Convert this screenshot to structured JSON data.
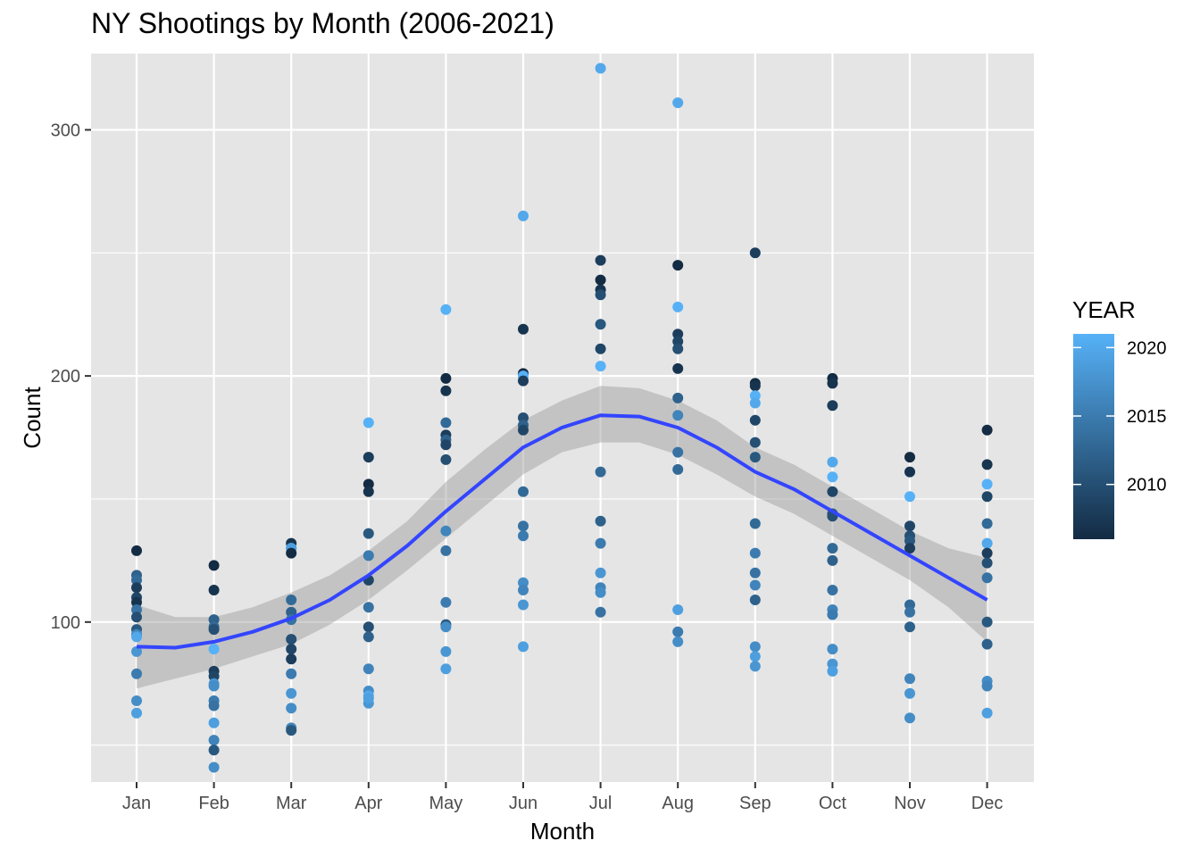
{
  "chart_data": {
    "type": "scatter",
    "title": "NY Shootings by Month (2006-2021)",
    "xlabel": "Month",
    "ylabel": "Count",
    "categories": [
      "Jan",
      "Feb",
      "Mar",
      "Apr",
      "May",
      "Jun",
      "Jul",
      "Aug",
      "Sep",
      "Oct",
      "Nov",
      "Dec"
    ],
    "ylim": [
      35,
      331
    ],
    "y_ticks": [
      100,
      200,
      300
    ],
    "grid": true,
    "panel_background": "#e5e5e5",
    "legend": {
      "title": "YEAR",
      "placement": "right",
      "ticks": [
        2010,
        2015,
        2020
      ],
      "range": [
        2006,
        2021
      ],
      "color_low": "#132b43",
      "color_high": "#56b1f7"
    },
    "smooth": {
      "color": "#3345ff",
      "band_color": "#999999",
      "points": [
        {
          "x": 1.0,
          "y": 90,
          "lo": 73,
          "hi": 107
        },
        {
          "x": 1.5,
          "y": 89.6,
          "lo": 77,
          "hi": 102
        },
        {
          "x": 2.0,
          "y": 92,
          "lo": 81,
          "hi": 102
        },
        {
          "x": 2.5,
          "y": 96,
          "lo": 86,
          "hi": 106
        },
        {
          "x": 3.0,
          "y": 101.5,
          "lo": 91,
          "hi": 112
        },
        {
          "x": 3.5,
          "y": 109,
          "lo": 99,
          "hi": 119
        },
        {
          "x": 4.0,
          "y": 119,
          "lo": 109,
          "hi": 129
        },
        {
          "x": 4.5,
          "y": 131,
          "lo": 121,
          "hi": 141
        },
        {
          "x": 5.0,
          "y": 145,
          "lo": 134,
          "hi": 157
        },
        {
          "x": 5.5,
          "y": 158,
          "lo": 147,
          "hi": 170
        },
        {
          "x": 6.0,
          "y": 171,
          "lo": 160,
          "hi": 182
        },
        {
          "x": 6.5,
          "y": 179,
          "lo": 169,
          "hi": 190
        },
        {
          "x": 7.0,
          "y": 184,
          "lo": 173,
          "hi": 196
        },
        {
          "x": 7.5,
          "y": 183.5,
          "lo": 173,
          "hi": 195
        },
        {
          "x": 8.0,
          "y": 179,
          "lo": 168,
          "hi": 190
        },
        {
          "x": 8.5,
          "y": 171,
          "lo": 160,
          "hi": 182
        },
        {
          "x": 9.0,
          "y": 161,
          "lo": 151,
          "hi": 171
        },
        {
          "x": 9.5,
          "y": 154,
          "lo": 144,
          "hi": 164
        },
        {
          "x": 10.0,
          "y": 145,
          "lo": 135,
          "hi": 155
        },
        {
          "x": 10.5,
          "y": 136,
          "lo": 126,
          "hi": 146
        },
        {
          "x": 11.0,
          "y": 127,
          "lo": 117,
          "hi": 137
        },
        {
          "x": 11.5,
          "y": 118,
          "lo": 106,
          "hi": 130
        },
        {
          "x": 12.0,
          "y": 109,
          "lo": 92,
          "hi": 126
        }
      ]
    },
    "series": [
      {
        "month": "Jan",
        "points": [
          {
            "y": 129,
            "year": 2006
          },
          {
            "y": 119,
            "year": 2012
          },
          {
            "y": 117,
            "year": 2013
          },
          {
            "y": 114,
            "year": 2008
          },
          {
            "y": 110,
            "year": 2009
          },
          {
            "y": 108,
            "year": 2007
          },
          {
            "y": 105,
            "year": 2014
          },
          {
            "y": 102,
            "year": 2010
          },
          {
            "y": 97,
            "year": 2011
          },
          {
            "y": 95,
            "year": 2016
          },
          {
            "y": 94,
            "year": 2020
          },
          {
            "y": 88,
            "year": 2018
          },
          {
            "y": 79,
            "year": 2015
          },
          {
            "y": 68,
            "year": 2017
          },
          {
            "y": 63,
            "year": 2019
          }
        ]
      },
      {
        "month": "Feb",
        "points": [
          {
            "y": 123,
            "year": 2006
          },
          {
            "y": 113,
            "year": 2007
          },
          {
            "y": 101,
            "year": 2012
          },
          {
            "y": 98,
            "year": 2013
          },
          {
            "y": 97,
            "year": 2010
          },
          {
            "y": 89,
            "year": 2021
          },
          {
            "y": 80,
            "year": 2008
          },
          {
            "y": 78,
            "year": 2009
          },
          {
            "y": 75,
            "year": 2018
          },
          {
            "y": 74,
            "year": 2017
          },
          {
            "y": 68,
            "year": 2015
          },
          {
            "y": 66,
            "year": 2014
          },
          {
            "y": 59,
            "year": 2019
          },
          {
            "y": 52,
            "year": 2016
          },
          {
            "y": 48,
            "year": 2011
          },
          {
            "y": 41,
            "year": 2017
          }
        ]
      },
      {
        "month": "Mar",
        "points": [
          {
            "y": 132,
            "year": 2007
          },
          {
            "y": 130,
            "year": 2021
          },
          {
            "y": 130,
            "year": 2019
          },
          {
            "y": 128,
            "year": 2006
          },
          {
            "y": 109,
            "year": 2013
          },
          {
            "y": 104,
            "year": 2012
          },
          {
            "y": 101,
            "year": 2014
          },
          {
            "y": 93,
            "year": 2010
          },
          {
            "y": 89,
            "year": 2009
          },
          {
            "y": 85,
            "year": 2008
          },
          {
            "y": 79,
            "year": 2015
          },
          {
            "y": 71,
            "year": 2018
          },
          {
            "y": 65,
            "year": 2017
          },
          {
            "y": 57,
            "year": 2016
          },
          {
            "y": 56,
            "year": 2011
          }
        ]
      },
      {
        "month": "Apr",
        "points": [
          {
            "y": 181,
            "year": 2021
          },
          {
            "y": 167,
            "year": 2008
          },
          {
            "y": 156,
            "year": 2006
          },
          {
            "y": 153,
            "year": 2007
          },
          {
            "y": 136,
            "year": 2011
          },
          {
            "y": 127,
            "year": 2015
          },
          {
            "y": 117,
            "year": 2009
          },
          {
            "y": 106,
            "year": 2014
          },
          {
            "y": 98,
            "year": 2010
          },
          {
            "y": 94,
            "year": 2012
          },
          {
            "y": 81,
            "year": 2016
          },
          {
            "y": 72,
            "year": 2017
          },
          {
            "y": 70,
            "year": 2020
          },
          {
            "y": 67,
            "year": 2018
          },
          {
            "y": 69,
            "year": 2019
          }
        ]
      },
      {
        "month": "May",
        "points": [
          {
            "y": 227,
            "year": 2021
          },
          {
            "y": 199,
            "year": 2006
          },
          {
            "y": 194,
            "year": 2007
          },
          {
            "y": 181,
            "year": 2013
          },
          {
            "y": 176,
            "year": 2008
          },
          {
            "y": 174,
            "year": 2012
          },
          {
            "y": 172,
            "year": 2009
          },
          {
            "y": 166,
            "year": 2010
          },
          {
            "y": 137,
            "year": 2016
          },
          {
            "y": 129,
            "year": 2014
          },
          {
            "y": 108,
            "year": 2015
          },
          {
            "y": 99,
            "year": 2011
          },
          {
            "y": 98,
            "year": 2017
          },
          {
            "y": 88,
            "year": 2018
          },
          {
            "y": 81,
            "year": 2019
          }
        ]
      },
      {
        "month": "Jun",
        "points": [
          {
            "y": 265,
            "year": 2020
          },
          {
            "y": 219,
            "year": 2007
          },
          {
            "y": 201,
            "year": 2006
          },
          {
            "y": 200,
            "year": 2021
          },
          {
            "y": 198,
            "year": 2008
          },
          {
            "y": 183,
            "year": 2010
          },
          {
            "y": 180,
            "year": 2012
          },
          {
            "y": 178,
            "year": 2009
          },
          {
            "y": 153,
            "year": 2013
          },
          {
            "y": 139,
            "year": 2014
          },
          {
            "y": 135,
            "year": 2015
          },
          {
            "y": 116,
            "year": 2017
          },
          {
            "y": 113,
            "year": 2016
          },
          {
            "y": 107,
            "year": 2018
          },
          {
            "y": 90,
            "year": 2019
          }
        ]
      },
      {
        "month": "Jul",
        "points": [
          {
            "y": 325,
            "year": 2020
          },
          {
            "y": 247,
            "year": 2008
          },
          {
            "y": 239,
            "year": 2006
          },
          {
            "y": 235,
            "year": 2007
          },
          {
            "y": 233,
            "year": 2010
          },
          {
            "y": 221,
            "year": 2011
          },
          {
            "y": 211,
            "year": 2009
          },
          {
            "y": 204,
            "year": 2021
          },
          {
            "y": 161,
            "year": 2013
          },
          {
            "y": 141,
            "year": 2012
          },
          {
            "y": 132,
            "year": 2015
          },
          {
            "y": 120,
            "year": 2018
          },
          {
            "y": 114,
            "year": 2016
          },
          {
            "y": 112,
            "year": 2017
          },
          {
            "y": 104,
            "year": 2014
          }
        ]
      },
      {
        "month": "Aug",
        "points": [
          {
            "y": 311,
            "year": 2020
          },
          {
            "y": 245,
            "year": 2006
          },
          {
            "y": 228,
            "year": 2021
          },
          {
            "y": 217,
            "year": 2008
          },
          {
            "y": 214,
            "year": 2009
          },
          {
            "y": 211,
            "year": 2010
          },
          {
            "y": 203,
            "year": 2007
          },
          {
            "y": 191,
            "year": 2012
          },
          {
            "y": 184,
            "year": 2016
          },
          {
            "y": 169,
            "year": 2014
          },
          {
            "y": 162,
            "year": 2013
          },
          {
            "y": 105,
            "year": 2019
          },
          {
            "y": 96,
            "year": 2015
          },
          {
            "y": 92,
            "year": 2017
          }
        ]
      },
      {
        "month": "Sep",
        "points": [
          {
            "y": 250,
            "year": 2008
          },
          {
            "y": 197,
            "year": 2006
          },
          {
            "y": 196,
            "year": 2007
          },
          {
            "y": 192,
            "year": 2021
          },
          {
            "y": 189,
            "year": 2020
          },
          {
            "y": 182,
            "year": 2009
          },
          {
            "y": 173,
            "year": 2010
          },
          {
            "y": 167,
            "year": 2011
          },
          {
            "y": 140,
            "year": 2013
          },
          {
            "y": 128,
            "year": 2015
          },
          {
            "y": 120,
            "year": 2014
          },
          {
            "y": 115,
            "year": 2016
          },
          {
            "y": 109,
            "year": 2012
          },
          {
            "y": 90,
            "year": 2017
          },
          {
            "y": 86,
            "year": 2019
          },
          {
            "y": 82,
            "year": 2018
          }
        ]
      },
      {
        "month": "Oct",
        "points": [
          {
            "y": 199,
            "year": 2006
          },
          {
            "y": 197,
            "year": 2007
          },
          {
            "y": 188,
            "year": 2008
          },
          {
            "y": 165,
            "year": 2020
          },
          {
            "y": 159,
            "year": 2021
          },
          {
            "y": 153,
            "year": 2009
          },
          {
            "y": 144,
            "year": 2011
          },
          {
            "y": 143,
            "year": 2010
          },
          {
            "y": 130,
            "year": 2013
          },
          {
            "y": 125,
            "year": 2012
          },
          {
            "y": 113,
            "year": 2014
          },
          {
            "y": 105,
            "year": 2016
          },
          {
            "y": 103,
            "year": 2015
          },
          {
            "y": 89,
            "year": 2017
          },
          {
            "y": 83,
            "year": 2018
          },
          {
            "y": 80,
            "year": 2019
          }
        ]
      },
      {
        "month": "Nov",
        "points": [
          {
            "y": 167,
            "year": 2006
          },
          {
            "y": 161,
            "year": 2007
          },
          {
            "y": 151,
            "year": 2021
          },
          {
            "y": 139,
            "year": 2009
          },
          {
            "y": 135,
            "year": 2010
          },
          {
            "y": 133,
            "year": 2011
          },
          {
            "y": 130,
            "year": 2008
          },
          {
            "y": 107,
            "year": 2013
          },
          {
            "y": 104,
            "year": 2014
          },
          {
            "y": 98,
            "year": 2012
          },
          {
            "y": 77,
            "year": 2016
          },
          {
            "y": 71,
            "year": 2018
          },
          {
            "y": 61,
            "year": 2017
          }
        ]
      },
      {
        "month": "Dec",
        "points": [
          {
            "y": 178,
            "year": 2006
          },
          {
            "y": 164,
            "year": 2007
          },
          {
            "y": 156,
            "year": 2021
          },
          {
            "y": 151,
            "year": 2009
          },
          {
            "y": 140,
            "year": 2013
          },
          {
            "y": 132,
            "year": 2020
          },
          {
            "y": 128,
            "year": 2008
          },
          {
            "y": 124,
            "year": 2010
          },
          {
            "y": 118,
            "year": 2014
          },
          {
            "y": 100,
            "year": 2011
          },
          {
            "y": 91,
            "year": 2012
          },
          {
            "y": 76,
            "year": 2017
          },
          {
            "y": 74,
            "year": 2016
          },
          {
            "y": 63,
            "year": 2019
          }
        ]
      }
    ]
  }
}
